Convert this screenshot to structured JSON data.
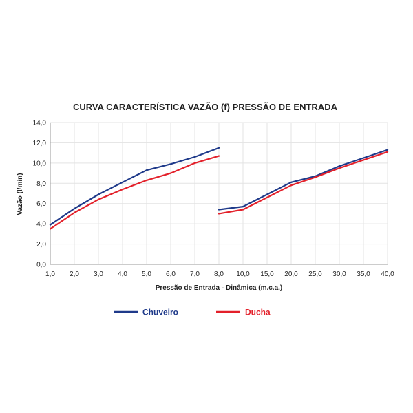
{
  "chart_data": {
    "type": "line",
    "title": "CURVA CARACTERÍSTICA VAZÃO (f) PRESSÃO DE ENTRADA",
    "xlabel": "Pressão de Entrada - Dinâmica (m.c.a.)",
    "ylabel": "Vazão (l/min)",
    "ylim": [
      0,
      14
    ],
    "yticks": [
      "0,0",
      "2,0",
      "4,0",
      "6,0",
      "8,0",
      "10,0",
      "12,0",
      "14,0"
    ],
    "ytick_values": [
      0,
      2,
      4,
      6,
      8,
      10,
      12,
      14
    ],
    "grid": true,
    "legend": "bottom",
    "segments": [
      {
        "categories": [
          "1,0",
          "2,0",
          "3,0",
          "4,0",
          "5,0",
          "6,0",
          "7,0",
          "8,0"
        ],
        "x": [
          1,
          2,
          3,
          4,
          5,
          6,
          7,
          8
        ],
        "series": [
          {
            "name": "Chuveiro",
            "color": "#1f3a8a",
            "values": [
              3.9,
              5.5,
              6.9,
              8.1,
              9.3,
              9.9,
              10.6,
              11.5
            ]
          },
          {
            "name": "Ducha",
            "color": "#e3202a",
            "values": [
              3.5,
              5.1,
              6.4,
              7.4,
              8.3,
              9.0,
              10.0,
              10.7
            ]
          }
        ]
      },
      {
        "categories": [
          "8,0",
          "10,0",
          "15,0",
          "20,0",
          "25,0",
          "30,0",
          "35,0",
          "40,0"
        ],
        "x": [
          8,
          10,
          15,
          20,
          25,
          30,
          35,
          40
        ],
        "series": [
          {
            "name": "Chuveiro",
            "color": "#1f3a8a",
            "values": [
              5.4,
              5.7,
              6.9,
              8.1,
              8.7,
              9.7,
              10.5,
              11.3
            ]
          },
          {
            "name": "Ducha",
            "color": "#e3202a",
            "values": [
              5.0,
              5.4,
              6.6,
              7.8,
              8.6,
              9.5,
              10.3,
              11.1
            ]
          }
        ]
      }
    ]
  },
  "legend": {
    "items": [
      {
        "label": "Chuveiro",
        "color": "#1f3a8a"
      },
      {
        "label": "Ducha",
        "color": "#e3202a"
      }
    ]
  }
}
